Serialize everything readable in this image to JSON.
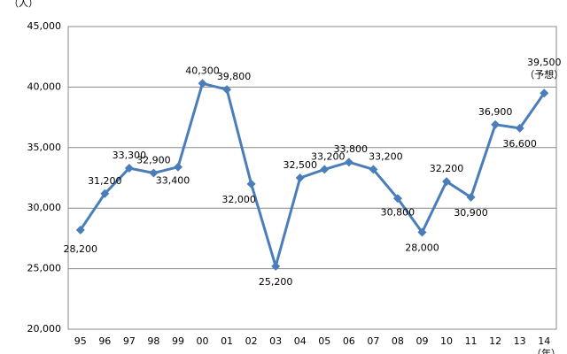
{
  "chart_data": {
    "type": "line",
    "y_label": "（人）",
    "x_label": "（年）",
    "categories": [
      "95",
      "96",
      "97",
      "98",
      "99",
      "00",
      "01",
      "02",
      "03",
      "04",
      "05",
      "06",
      "07",
      "08",
      "09",
      "10",
      "11",
      "12",
      "13",
      "14"
    ],
    "series": [
      {
        "name": "人数",
        "color": "#4a7ebb",
        "values": [
          28200,
          31200,
          33300,
          32900,
          33400,
          40300,
          39800,
          32000,
          25200,
          32500,
          33200,
          33800,
          33200,
          30800,
          28000,
          32200,
          30900,
          36900,
          36600,
          39500
        ],
        "value_labels": [
          "28,200",
          "31,200",
          "33,300",
          "32,900",
          "33,400",
          "40,300",
          "39,800",
          "32,000",
          "25,200",
          "32,500",
          "33,200",
          "33,800",
          "33,200",
          "30,800",
          "28,000",
          "32,200",
          "30,900",
          "36,900",
          "36,600",
          "39,500"
        ]
      }
    ],
    "annotation": "（予想）",
    "ylim": [
      20000,
      45000
    ],
    "yticks": [
      {
        "value": 20000,
        "label": "20,000"
      },
      {
        "value": 25000,
        "label": "25,000"
      },
      {
        "value": 30000,
        "label": "30,000"
      },
      {
        "value": 35000,
        "label": "35,000"
      },
      {
        "value": 40000,
        "label": "40,000"
      },
      {
        "value": 45000,
        "label": "45,000"
      }
    ],
    "grid": true
  }
}
